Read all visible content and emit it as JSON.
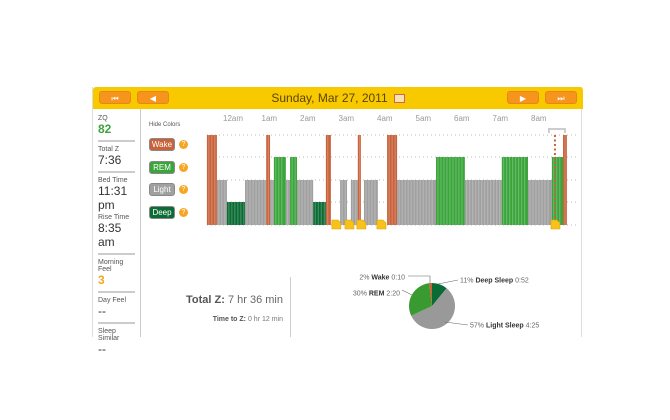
{
  "header": {
    "date": "Sunday, Mar 27, 2011",
    "first": "⏮",
    "prev": "◀",
    "next": "▶",
    "last": "⏭"
  },
  "sidebar": [
    {
      "label": "ZQ",
      "value": "82",
      "color": "#3aa53a"
    },
    {
      "label": "Total Z",
      "value": "7:36"
    },
    {
      "label": "Bed Time",
      "value": "11:31 pm"
    },
    {
      "label": "Rise Time",
      "value": "8:35 am"
    },
    {
      "label": "Morning Feel",
      "value": "3",
      "color": "#f5a623"
    },
    {
      "label": "Day Feel",
      "value": "--"
    },
    {
      "label": "Sleep Similar",
      "value": "--"
    }
  ],
  "legend": {
    "hide": "Hide Colors",
    "items": [
      {
        "label": "Wake",
        "color": "#c8623a"
      },
      {
        "label": "REM",
        "color": "#3aa53a"
      },
      {
        "label": "Light",
        "color": "#a0a0a0"
      },
      {
        "label": "Deep",
        "color": "#0b6b34"
      }
    ]
  },
  "chart_data": {
    "type": "hypnogram",
    "x_unit": "hours after midnight",
    "ticks": [
      "12am",
      "1am",
      "2am",
      "3am",
      "4am",
      "5am",
      "6am",
      "7am",
      "8am"
    ],
    "segments": [
      [
        "Wake",
        -0.6,
        -0.34
      ],
      [
        "Light",
        -0.34,
        -0.08
      ],
      [
        "Deep",
        -0.08,
        0.39
      ],
      [
        "Light",
        0.39,
        0.94
      ],
      [
        "Wake",
        0.94,
        1.04
      ],
      [
        "Light",
        1.04,
        1.14
      ],
      [
        "REM",
        1.14,
        1.45
      ],
      [
        "Light",
        1.45,
        1.56
      ],
      [
        "REM",
        1.56,
        1.74
      ],
      [
        "Light",
        1.74,
        2.16
      ],
      [
        "Deep",
        2.16,
        2.49
      ],
      [
        "Wake",
        2.49,
        2.62
      ],
      [
        "Light",
        2.86,
        3.04
      ],
      [
        "Light",
        3.14,
        3.32
      ],
      [
        "Wake",
        3.32,
        3.4
      ],
      [
        "Light",
        3.48,
        3.84
      ],
      [
        "Wake",
        4.08,
        4.34
      ],
      [
        "Light",
        4.34,
        5.35
      ],
      [
        "REM",
        5.35,
        6.1
      ],
      [
        "Light",
        6.1,
        7.06
      ],
      [
        "REM",
        7.06,
        7.74
      ],
      [
        "Light",
        7.74,
        8.36
      ],
      [
        "REM",
        8.36,
        8.65
      ],
      [
        "Wake",
        8.65,
        8.75
      ]
    ],
    "markers": [
      2.75,
      3.09,
      3.4,
      3.92,
      8.44
    ],
    "rise_line": 8.44
  },
  "summary": {
    "total_label": "Total Z:",
    "total": "7 hr 36 min",
    "ttz_label": "Time to Z:",
    "ttz": "0 hr 12 min"
  },
  "pie": [
    {
      "pct": "11%",
      "name": "Deep Sleep",
      "time": "0:52",
      "value": 11,
      "color": "#0b6b34"
    },
    {
      "pct": "57%",
      "name": "Light Sleep",
      "time": "4:25",
      "value": 57,
      "color": "#999999"
    },
    {
      "pct": "30%",
      "name": "REM",
      "time": "2:20",
      "value": 30,
      "color": "#3a9a32"
    },
    {
      "pct": "2%",
      "name": "Wake",
      "time": "0:10",
      "value": 2,
      "color": "#c8623a"
    }
  ]
}
